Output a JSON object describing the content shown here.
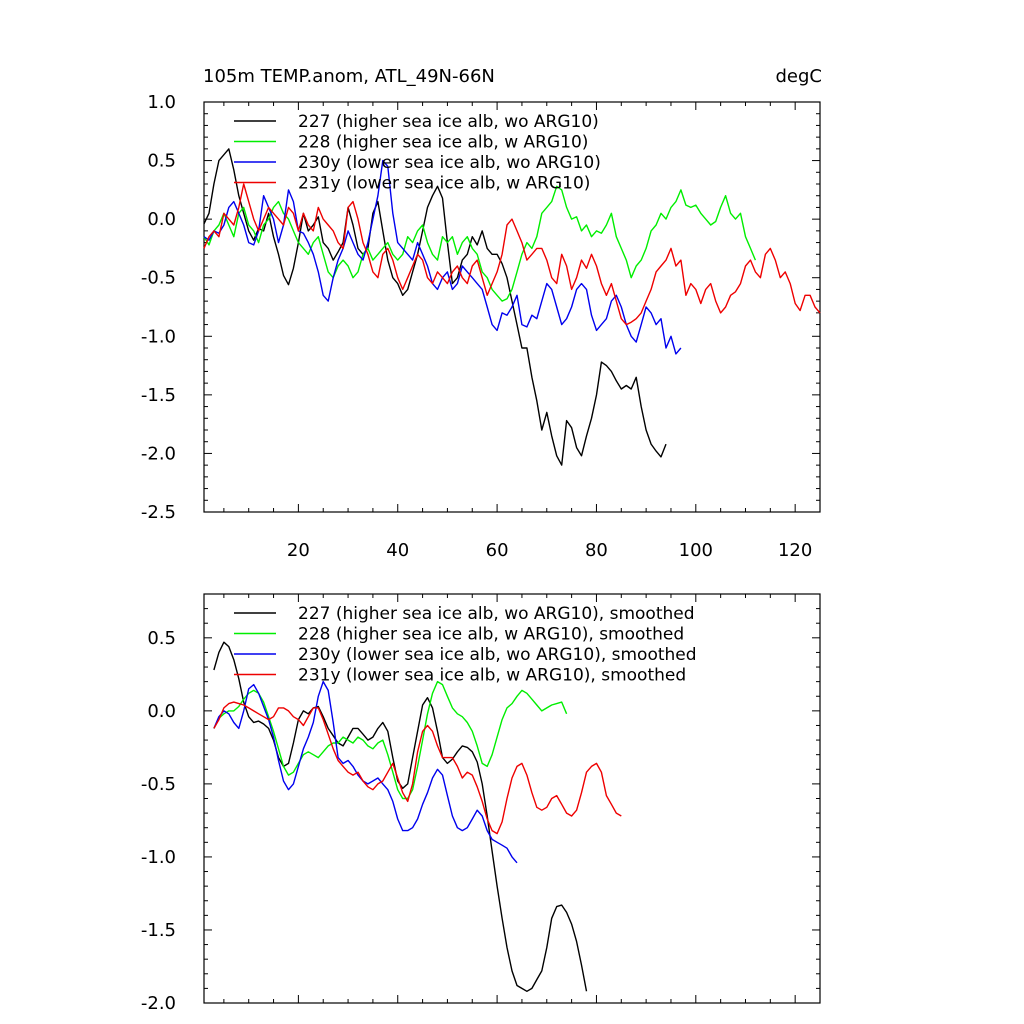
{
  "chart_data": [
    {
      "type": "line",
      "title": "105m TEMP.anom, ATL_49N-66N",
      "units": "degC",
      "xlim": [
        1,
        125
      ],
      "ylim": [
        -2.5,
        1.0
      ],
      "x_ticks": [
        20,
        40,
        60,
        80,
        100,
        120
      ],
      "y_ticks": [
        1.0,
        0.5,
        0.0,
        -0.5,
        -1.0,
        -1.5,
        -2.0,
        -2.5
      ],
      "x_tick_labels": [
        "20",
        "40",
        "60",
        "80",
        "100",
        "120"
      ],
      "y_tick_labels": [
        "1.0",
        "0.5",
        "0.0",
        "-0.5",
        "-1.0",
        "-1.5",
        "-2.0",
        "-2.5"
      ],
      "legend_position": "top-left",
      "series": [
        {
          "name": "227 (higher sea ice alb, wo ARG10)",
          "color": "#000000",
          "x_start": 1,
          "values": [
            -0.04,
            0.05,
            0.3,
            0.5,
            0.55,
            0.6,
            0.42,
            0.2,
            0.05,
            -0.1,
            -0.18,
            -0.08,
            -0.1,
            0.05,
            -0.15,
            -0.3,
            -0.48,
            -0.56,
            -0.42,
            -0.2,
            0.05,
            -0.1,
            -0.05,
            0.02,
            -0.2,
            -0.25,
            -0.35,
            -0.28,
            -0.2,
            0.1,
            -0.05,
            -0.25,
            -0.3,
            -0.25,
            0.05,
            0.15,
            -0.1,
            -0.35,
            -0.5,
            -0.55,
            -0.65,
            -0.6,
            -0.45,
            -0.3,
            -0.1,
            0.1,
            0.2,
            0.28,
            0.18,
            -0.2,
            -0.55,
            -0.5,
            -0.35,
            -0.3,
            -0.15,
            -0.22,
            -0.1,
            -0.25,
            -0.3,
            -0.3,
            -0.38,
            -0.5,
            -0.7,
            -0.9,
            -1.1,
            -1.1,
            -1.35,
            -1.55,
            -1.8,
            -1.65,
            -1.85,
            -2.02,
            -2.1,
            -1.72,
            -1.78,
            -1.95,
            -2.02,
            -1.85,
            -1.7,
            -1.5,
            -1.22,
            -1.25,
            -1.3,
            -1.38,
            -1.45,
            -1.42,
            -1.45,
            -1.35,
            -1.6,
            -1.8,
            -1.92,
            -1.98,
            -2.03,
            -1.92
          ]
        },
        {
          "name": "228 (higher sea ice alb, w ARG10)",
          "color": "#00ee00",
          "x_start": 1,
          "values": [
            -0.15,
            -0.22,
            -0.1,
            -0.05,
            0.05,
            -0.05,
            -0.15,
            0.05,
            0.1,
            -0.05,
            -0.1,
            -0.2,
            -0.05,
            0.0,
            0.1,
            0.15,
            0.05,
            0.0,
            -0.1,
            -0.2,
            -0.25,
            -0.3,
            -0.2,
            -0.15,
            -0.3,
            -0.45,
            -0.5,
            -0.4,
            -0.35,
            -0.4,
            -0.5,
            -0.45,
            -0.3,
            -0.25,
            -0.35,
            -0.3,
            -0.25,
            -0.2,
            -0.3,
            -0.35,
            -0.3,
            -0.15,
            -0.2,
            -0.1,
            -0.05,
            -0.2,
            -0.3,
            -0.35,
            -0.15,
            -0.2,
            -0.15,
            -0.3,
            -0.2,
            -0.15,
            -0.25,
            -0.3,
            -0.45,
            -0.5,
            -0.6,
            -0.65,
            -0.7,
            -0.68,
            -0.6,
            -0.45,
            -0.3,
            -0.2,
            -0.25,
            -0.15,
            0.05,
            0.1,
            0.15,
            0.28,
            0.25,
            0.1,
            0.0,
            0.02,
            -0.1,
            -0.05,
            -0.15,
            -0.1,
            -0.12,
            -0.05,
            0.05,
            -0.15,
            -0.25,
            -0.35,
            -0.5,
            -0.4,
            -0.35,
            -0.25,
            -0.1,
            -0.05,
            0.05,
            0.0,
            0.1,
            0.15,
            0.25,
            0.12,
            0.1,
            0.12,
            0.05,
            0.0,
            -0.05,
            -0.02,
            0.1,
            0.2,
            0.05,
            0.0,
            0.05,
            -0.15,
            -0.25,
            -0.35
          ]
        },
        {
          "name": "230y (lower sea ice alb, wo ARG10)",
          "color": "#0000ee",
          "x_start": 1,
          "values": [
            -0.15,
            -0.18,
            -0.1,
            -0.12,
            -0.05,
            0.1,
            0.15,
            0.05,
            -0.05,
            -0.2,
            -0.22,
            -0.1,
            0.2,
            0.1,
            0.0,
            -0.2,
            -0.05,
            0.25,
            0.15,
            -0.1,
            -0.12,
            -0.2,
            -0.3,
            -0.45,
            -0.65,
            -0.7,
            -0.5,
            -0.35,
            -0.25,
            -0.1,
            -0.2,
            -0.3,
            -0.35,
            -0.2,
            0.0,
            0.2,
            0.5,
            0.45,
            0.05,
            -0.2,
            -0.25,
            -0.3,
            -0.35,
            -0.2,
            -0.3,
            -0.4,
            -0.55,
            -0.6,
            -0.5,
            -0.45,
            -0.6,
            -0.55,
            -0.4,
            -0.45,
            -0.5,
            -0.55,
            -0.6,
            -0.75,
            -0.9,
            -0.95,
            -0.8,
            -0.82,
            -0.75,
            -0.65,
            -0.9,
            -0.92,
            -0.82,
            -0.85,
            -0.7,
            -0.55,
            -0.6,
            -0.75,
            -0.9,
            -0.85,
            -0.75,
            -0.6,
            -0.55,
            -0.6,
            -0.82,
            -0.95,
            -0.9,
            -0.85,
            -0.7,
            -0.65,
            -0.75,
            -0.9,
            -1.0,
            -1.05,
            -0.9,
            -0.75,
            -0.8,
            -0.9,
            -0.85,
            -1.1,
            -1.0,
            -1.15,
            -1.1
          ]
        },
        {
          "name": "231y (lower sea ice alb, w ARG10)",
          "color": "#ee0000",
          "x_start": 1,
          "values": [
            -0.25,
            -0.15,
            -0.1,
            -0.15,
            0.05,
            0.0,
            -0.05,
            0.1,
            0.3,
            0.15,
            0.0,
            -0.1,
            0.0,
            0.1,
            0.05,
            0.0,
            -0.05,
            0.1,
            0.05,
            -0.1,
            0.05,
            -0.05,
            -0.1,
            0.1,
            0.0,
            -0.05,
            -0.1,
            -0.2,
            -0.25,
            0.1,
            0.15,
            0.0,
            -0.2,
            -0.3,
            -0.45,
            -0.5,
            -0.3,
            -0.25,
            -0.35,
            -0.5,
            -0.6,
            -0.5,
            -0.4,
            -0.3,
            -0.35,
            -0.5,
            -0.55,
            -0.45,
            -0.5,
            -0.55,
            -0.45,
            -0.4,
            -0.5,
            -0.55,
            -0.4,
            -0.35,
            -0.5,
            -0.65,
            -0.55,
            -0.45,
            -0.3,
            -0.05,
            0.0,
            -0.1,
            -0.2,
            -0.35,
            -0.3,
            -0.25,
            -0.25,
            -0.35,
            -0.5,
            -0.55,
            -0.3,
            -0.4,
            -0.6,
            -0.5,
            -0.35,
            -0.42,
            -0.3,
            -0.4,
            -0.55,
            -0.65,
            -0.55,
            -0.7,
            -0.85,
            -0.9,
            -0.88,
            -0.85,
            -0.8,
            -0.7,
            -0.6,
            -0.45,
            -0.4,
            -0.35,
            -0.25,
            -0.4,
            -0.35,
            -0.65,
            -0.55,
            -0.6,
            -0.72,
            -0.6,
            -0.55,
            -0.7,
            -0.8,
            -0.75,
            -0.65,
            -0.62,
            -0.55,
            -0.4,
            -0.35,
            -0.45,
            -0.5,
            -0.3,
            -0.25,
            -0.35,
            -0.5,
            -0.45,
            -0.55,
            -0.72,
            -0.78,
            -0.65,
            -0.65,
            -0.75,
            -0.8
          ]
        }
      ]
    },
    {
      "type": "line",
      "title": "",
      "xlim": [
        1,
        125
      ],
      "ylim": [
        -2.0,
        0.8
      ],
      "x_ticks": [
        20,
        40,
        60,
        80,
        100,
        120
      ],
      "y_ticks": [
        0.5,
        0.0,
        -0.5,
        -1.0,
        -1.5,
        -2.0
      ],
      "y_tick_labels": [
        "0.5",
        "0.0",
        "-0.5",
        "-1.0",
        "-1.5",
        "-2.0"
      ],
      "legend_position": "top-left",
      "series": [
        {
          "name": "227 (higher sea ice alb, wo ARG10), smoothed",
          "color": "#000000",
          "x_start": 3,
          "values": [
            0.28,
            0.4,
            0.47,
            0.44,
            0.35,
            0.22,
            0.06,
            -0.04,
            -0.08,
            -0.07,
            -0.09,
            -0.12,
            -0.2,
            -0.32,
            -0.38,
            -0.36,
            -0.22,
            -0.06,
            0.0,
            -0.02,
            0.02,
            0.03,
            -0.04,
            -0.12,
            -0.17,
            -0.22,
            -0.24,
            -0.18,
            -0.12,
            -0.12,
            -0.16,
            -0.2,
            -0.18,
            -0.12,
            -0.08,
            -0.14,
            -0.32,
            -0.48,
            -0.53,
            -0.5,
            -0.32,
            -0.14,
            0.04,
            0.09,
            0.02,
            -0.14,
            -0.32,
            -0.36,
            -0.33,
            -0.28,
            -0.24,
            -0.25,
            -0.28,
            -0.35,
            -0.5,
            -0.72,
            -0.96,
            -1.2,
            -1.42,
            -1.62,
            -1.78,
            -1.88,
            -1.9,
            -1.92,
            -1.9,
            -1.84,
            -1.78,
            -1.62,
            -1.42,
            -1.34,
            -1.33,
            -1.38,
            -1.46,
            -1.58,
            -1.74,
            -1.92
          ]
        },
        {
          "name": "228 (higher sea ice alb, w ARG10), smoothed",
          "color": "#00ee00",
          "x_start": 3,
          "values": [
            -0.12,
            -0.05,
            -0.02,
            0.0,
            0.0,
            0.03,
            0.08,
            0.12,
            0.14,
            0.12,
            0.06,
            -0.04,
            -0.14,
            -0.26,
            -0.38,
            -0.44,
            -0.42,
            -0.36,
            -0.3,
            -0.28,
            -0.3,
            -0.32,
            -0.28,
            -0.24,
            -0.22,
            -0.22,
            -0.18,
            -0.2,
            -0.22,
            -0.18,
            -0.2,
            -0.24,
            -0.26,
            -0.22,
            -0.2,
            -0.3,
            -0.42,
            -0.54,
            -0.6,
            -0.6,
            -0.54,
            -0.38,
            -0.2,
            -0.02,
            0.12,
            0.2,
            0.18,
            0.1,
            0.02,
            -0.02,
            -0.04,
            -0.08,
            -0.14,
            -0.24,
            -0.36,
            -0.38,
            -0.3,
            -0.18,
            -0.06,
            0.02,
            0.05,
            0.1,
            0.14,
            0.12,
            0.08,
            0.04,
            0.0,
            0.02,
            0.04,
            0.05,
            0.06,
            -0.02
          ]
        },
        {
          "name": "230y (lower sea ice alb, wo ARG10), smoothed",
          "color": "#0000ee",
          "x_start": 3,
          "values": [
            -0.12,
            -0.04,
            0.0,
            -0.02,
            -0.08,
            -0.12,
            0.0,
            0.15,
            0.18,
            0.12,
            0.03,
            -0.06,
            -0.18,
            -0.34,
            -0.48,
            -0.54,
            -0.5,
            -0.38,
            -0.26,
            -0.18,
            -0.08,
            0.1,
            0.2,
            0.14,
            -0.08,
            -0.32,
            -0.36,
            -0.34,
            -0.38,
            -0.44,
            -0.48,
            -0.5,
            -0.48,
            -0.46,
            -0.5,
            -0.54,
            -0.62,
            -0.74,
            -0.82,
            -0.82,
            -0.8,
            -0.74,
            -0.64,
            -0.56,
            -0.46,
            -0.4,
            -0.44,
            -0.58,
            -0.72,
            -0.8,
            -0.82,
            -0.8,
            -0.74,
            -0.68,
            -0.72,
            -0.82,
            -0.88,
            -0.9,
            -0.92,
            -0.94,
            -1.0,
            -1.04
          ]
        },
        {
          "name": "231y (lower sea ice alb, w ARG10), smoothed",
          "color": "#ee0000",
          "x_start": 3,
          "values": [
            -0.12,
            -0.06,
            0.02,
            0.05,
            0.06,
            0.05,
            0.04,
            0.02,
            0.0,
            -0.02,
            -0.04,
            -0.06,
            -0.04,
            0.02,
            0.02,
            0.0,
            -0.04,
            -0.06,
            -0.1,
            -0.04,
            0.02,
            0.02,
            -0.06,
            -0.16,
            -0.26,
            -0.34,
            -0.38,
            -0.42,
            -0.44,
            -0.42,
            -0.48,
            -0.52,
            -0.54,
            -0.5,
            -0.48,
            -0.42,
            -0.36,
            -0.46,
            -0.56,
            -0.62,
            -0.5,
            -0.28,
            -0.14,
            -0.1,
            -0.14,
            -0.24,
            -0.32,
            -0.32,
            -0.32,
            -0.38,
            -0.46,
            -0.42,
            -0.44,
            -0.52,
            -0.62,
            -0.74,
            -0.82,
            -0.84,
            -0.76,
            -0.6,
            -0.46,
            -0.38,
            -0.36,
            -0.44,
            -0.56,
            -0.66,
            -0.68,
            -0.66,
            -0.6,
            -0.58,
            -0.64,
            -0.7,
            -0.72,
            -0.68,
            -0.56,
            -0.42,
            -0.38,
            -0.36,
            -0.42,
            -0.58,
            -0.64,
            -0.7,
            -0.72
          ]
        }
      ]
    }
  ]
}
